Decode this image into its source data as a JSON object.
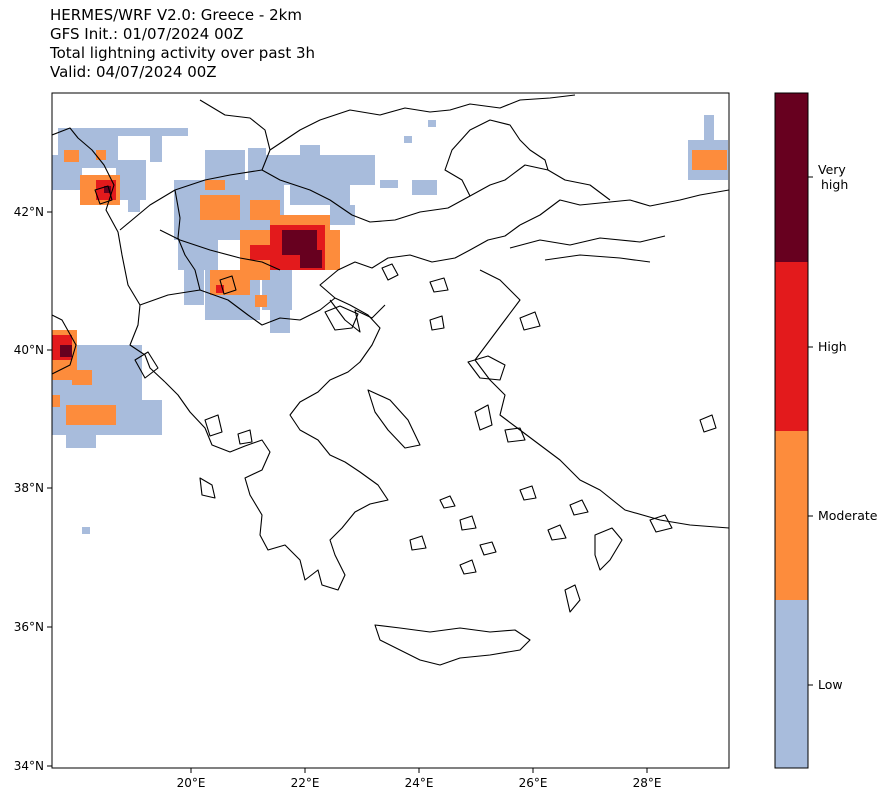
{
  "title": {
    "line1": "HERMES/WRF V2.0: Greece - 2km",
    "line2": "GFS Init.: 01/07/2024 00Z",
    "line3": "Total lightning activity over past 3h",
    "line4": "Valid: 04/07/2024 00Z"
  },
  "axes": {
    "lat_ticks": [
      "34°N",
      "36°N",
      "38°N",
      "40°N",
      "42°N"
    ],
    "lon_ticks": [
      "20°E",
      "22°E",
      "24°E",
      "26°E",
      "28°E"
    ]
  },
  "colorbar": {
    "levels": [
      {
        "label": "Low",
        "color": "#a8bcdc"
      },
      {
        "label": "Moderate",
        "color": "#fd8c3c"
      },
      {
        "label": "High",
        "color": "#e31a1c"
      },
      {
        "label": "Very high",
        "label_lines": [
          "Very",
          "high"
        ],
        "color": "#67001f"
      }
    ]
  },
  "map_data": {
    "region": "Greece",
    "resolution": "2km",
    "colors": {
      "coastline": "#000000",
      "background": "#ffffff"
    },
    "activity_regions": [
      {
        "area": "Albania / Montenegro north-west",
        "level": "High"
      },
      {
        "area": "North Macedonia / northern Greece",
        "level": "Very high"
      },
      {
        "area": "Southern Italy (west edge)",
        "level": "Very high"
      },
      {
        "area": "Western Turkey (north-east corner)",
        "level": "Moderate"
      }
    ]
  }
}
